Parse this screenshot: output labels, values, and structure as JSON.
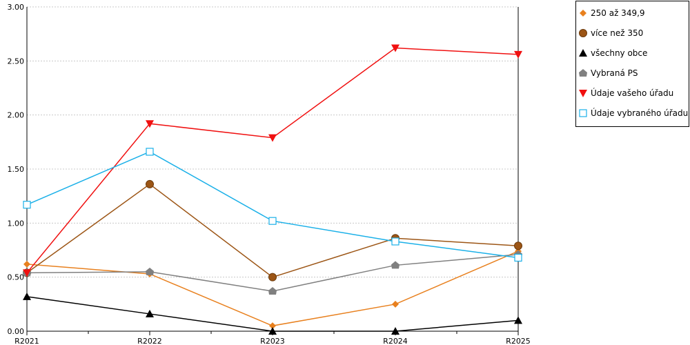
{
  "chart_data": {
    "type": "line",
    "x": [
      "R2021",
      "R2022",
      "R2023",
      "R2024",
      "R2025"
    ],
    "ylim": [
      0,
      3
    ],
    "yticks": [
      "0.00",
      "0.50",
      "1.00",
      "1.50",
      "2.00",
      "2.50",
      "3.00"
    ],
    "grid": true,
    "legend_position": "right",
    "series": [
      {
        "name": "250 až 349,9",
        "color": "#e8801e",
        "marker": "diamond",
        "values": [
          0.62,
          0.53,
          0.05,
          0.25,
          0.74
        ]
      },
      {
        "name": "více než 350",
        "color": "#9c5515",
        "marker": "circle",
        "values": [
          0.54,
          1.36,
          0.5,
          0.86,
          0.79
        ]
      },
      {
        "name": "všechny obce",
        "color": "#000000",
        "marker": "triangle-up",
        "values": [
          0.32,
          0.16,
          0.0,
          0.0,
          0.1
        ]
      },
      {
        "name": "Vybraná PS",
        "color": "#808080",
        "marker": "house",
        "values": [
          0.54,
          0.55,
          0.37,
          0.61,
          0.71
        ]
      },
      {
        "name": "Údaje vašeho úřadu",
        "color": "#f01010",
        "marker": "triangle-down",
        "values": [
          0.54,
          1.92,
          1.79,
          2.62,
          2.56
        ]
      },
      {
        "name": "Údaje vybraného úřadu",
        "color": "#1ab0e8",
        "marker": "square-open",
        "values": [
          1.17,
          1.66,
          1.02,
          0.83,
          0.68
        ]
      }
    ]
  }
}
